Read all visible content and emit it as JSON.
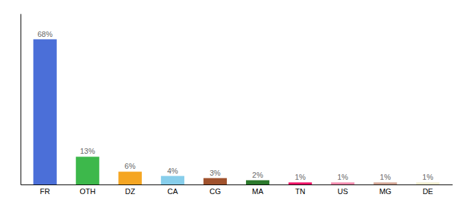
{
  "chart_data": {
    "type": "bar",
    "categories": [
      "FR",
      "OTH",
      "DZ",
      "CA",
      "CG",
      "MA",
      "TN",
      "US",
      "MG",
      "DE"
    ],
    "values": [
      68,
      13,
      6,
      4,
      3,
      2,
      1,
      1,
      1,
      1
    ],
    "value_labels": [
      "68%",
      "13%",
      "6%",
      "4%",
      "3%",
      "2%",
      "1%",
      "1%",
      "1%",
      "1%"
    ],
    "colors": [
      "#4B6FD8",
      "#3DB84B",
      "#F5A623",
      "#87CEEB",
      "#A0522D",
      "#2D7A2D",
      "#F0186A",
      "#F48FB1",
      "#D4A898",
      "#F0EDD0"
    ],
    "ylim": [
      0,
      80
    ],
    "data_labels": true,
    "tick_labels": "x",
    "grid": false
  }
}
